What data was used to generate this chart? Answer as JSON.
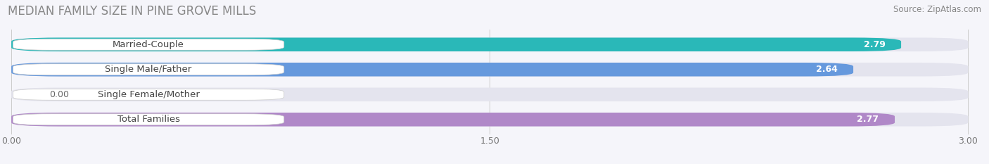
{
  "title": "MEDIAN FAMILY SIZE IN PINE GROVE MILLS",
  "source": "Source: ZipAtlas.com",
  "categories": [
    "Married-Couple",
    "Single Male/Father",
    "Single Female/Mother",
    "Total Families"
  ],
  "values": [
    2.79,
    2.64,
    0.0,
    2.77
  ],
  "bar_colors": [
    "#2ab8b8",
    "#6699dd",
    "#f4a0b8",
    "#b088c8"
  ],
  "xlim_min": 0.0,
  "xlim_max": 3.0,
  "xticks": [
    0.0,
    1.5,
    3.0
  ],
  "xtick_labels": [
    "0.00",
    "1.50",
    "3.00"
  ],
  "background_color": "#f5f5fa",
  "bar_bg_color": "#e4e4ee",
  "title_fontsize": 12,
  "source_fontsize": 8.5,
  "label_fontsize": 9.5,
  "value_fontsize": 9
}
